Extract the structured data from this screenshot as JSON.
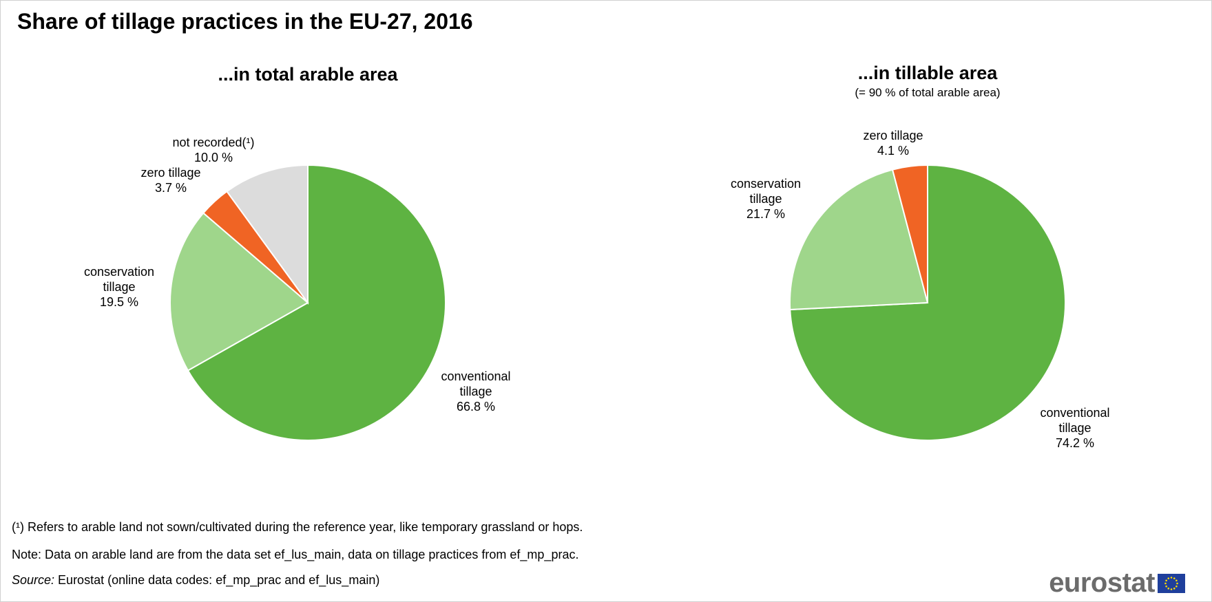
{
  "title": "Share of tillage practices in the EU-27, 2016",
  "colors": {
    "conventional": "#5eb342",
    "conservation": "#9fd68b",
    "zero": "#f06424",
    "not_recorded": "#dcdcdc"
  },
  "chart_data": [
    {
      "type": "pie",
      "title": "...in total arable area",
      "subtitle": "",
      "start_angle_deg": 0,
      "direction": "clockwise",
      "slices": [
        {
          "name": "conventional tillage",
          "label_lines": [
            "conventional",
            "tillage"
          ],
          "value": 66.8,
          "value_text": "66.8 %",
          "color": "#5eb342"
        },
        {
          "name": "conservation tillage",
          "label_lines": [
            "conservation",
            "tillage"
          ],
          "value": 19.5,
          "value_text": "19.5 %",
          "color": "#9fd68b"
        },
        {
          "name": "zero tillage",
          "label_lines": [
            "zero tillage"
          ],
          "value": 3.7,
          "value_text": "3.7 %",
          "color": "#f06424"
        },
        {
          "name": "not recorded",
          "label_lines": [
            "not recorded(¹)"
          ],
          "value": 10.0,
          "value_text": "10.0 %",
          "color": "#dcdcdc"
        }
      ]
    },
    {
      "type": "pie",
      "title": "...in tillable area",
      "subtitle": "(= 90 % of total arable area)",
      "start_angle_deg": 0,
      "direction": "clockwise",
      "slices": [
        {
          "name": "conventional tillage",
          "label_lines": [
            "conventional",
            "tillage"
          ],
          "value": 74.2,
          "value_text": "74.2 %",
          "color": "#5eb342"
        },
        {
          "name": "conservation tillage",
          "label_lines": [
            "conservation",
            "tillage"
          ],
          "value": 21.7,
          "value_text": "21.7 %",
          "color": "#9fd68b"
        },
        {
          "name": "zero tillage",
          "label_lines": [
            "zero tillage"
          ],
          "value": 4.1,
          "value_text": "4.1 %",
          "color": "#f06424"
        }
      ]
    }
  ],
  "footnotes": {
    "note1": "(¹) Refers to arable land not sown/cultivated during the reference year, like temporary grassland or hops.",
    "note2": "Note: Data on arable land are from the data set ef_lus_main, data on tillage practices from ef_mp_prac.",
    "source_label": "Source:",
    "source_text": " Eurostat (online data codes: ef_mp_prac and ef_lus_main)"
  },
  "logo": {
    "text": "eurostat",
    "flag_icon": "eu-flag-icon"
  }
}
